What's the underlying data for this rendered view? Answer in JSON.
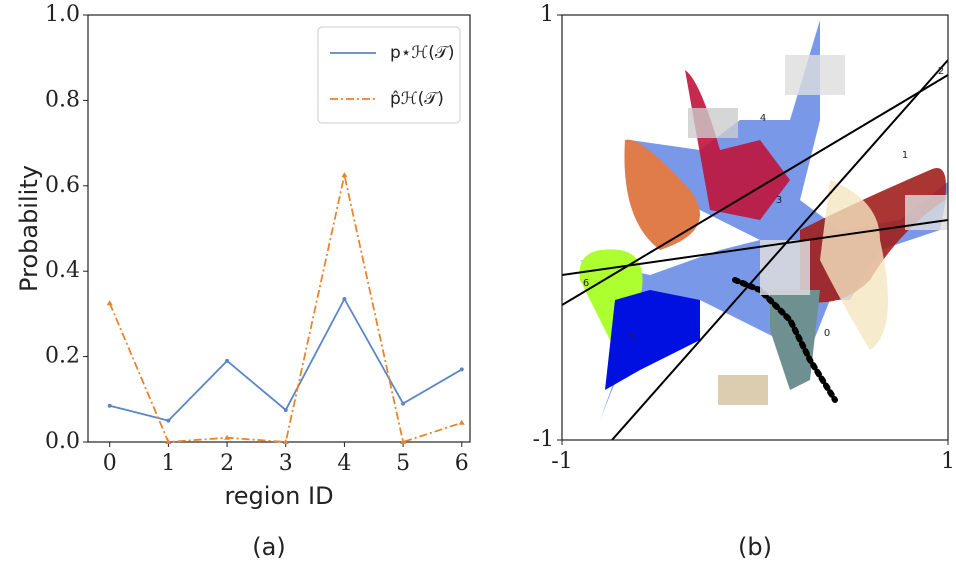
{
  "chart_data": [
    {
      "type": "line",
      "xlabel": "region ID",
      "ylabel": "Probability",
      "caption": "(a)",
      "x": [
        0,
        1,
        2,
        3,
        4,
        5,
        6
      ],
      "xlim": [
        -0.37,
        6.14
      ],
      "xticks": [
        0,
        1,
        2,
        3,
        4,
        5,
        6
      ],
      "ylim": [
        0,
        1
      ],
      "yticks": [
        {
          "value": 0,
          "label": "0.0"
        },
        0.2,
        0.4,
        0.6,
        0.8,
        {
          "value": 1,
          "label": "1.0"
        }
      ],
      "legend": "upper right",
      "series": [
        {
          "name": "p⋆ℋ(𝒯)",
          "color": "#5a86c5",
          "dash": "solid",
          "values": [
            0.085,
            0.05,
            0.19,
            0.075,
            0.335,
            0.09,
            0.17
          ]
        },
        {
          "name": "p̂ℋ(𝒯)",
          "color": "#e8842c",
          "dash": "dashdot",
          "values": [
            0.325,
            0.0,
            0.01,
            0.0,
            0.625,
            0.0,
            0.045
          ]
        }
      ]
    },
    {
      "type": "scatter",
      "caption": "(b)",
      "xlim": [
        -1,
        1
      ],
      "xticks": [
        -1,
        1
      ],
      "ylim": [
        -1,
        1
      ],
      "yticks": [
        -1,
        1
      ],
      "annotations": [
        "0",
        "1",
        "2",
        "3",
        "4",
        "5",
        "6"
      ]
    }
  ]
}
